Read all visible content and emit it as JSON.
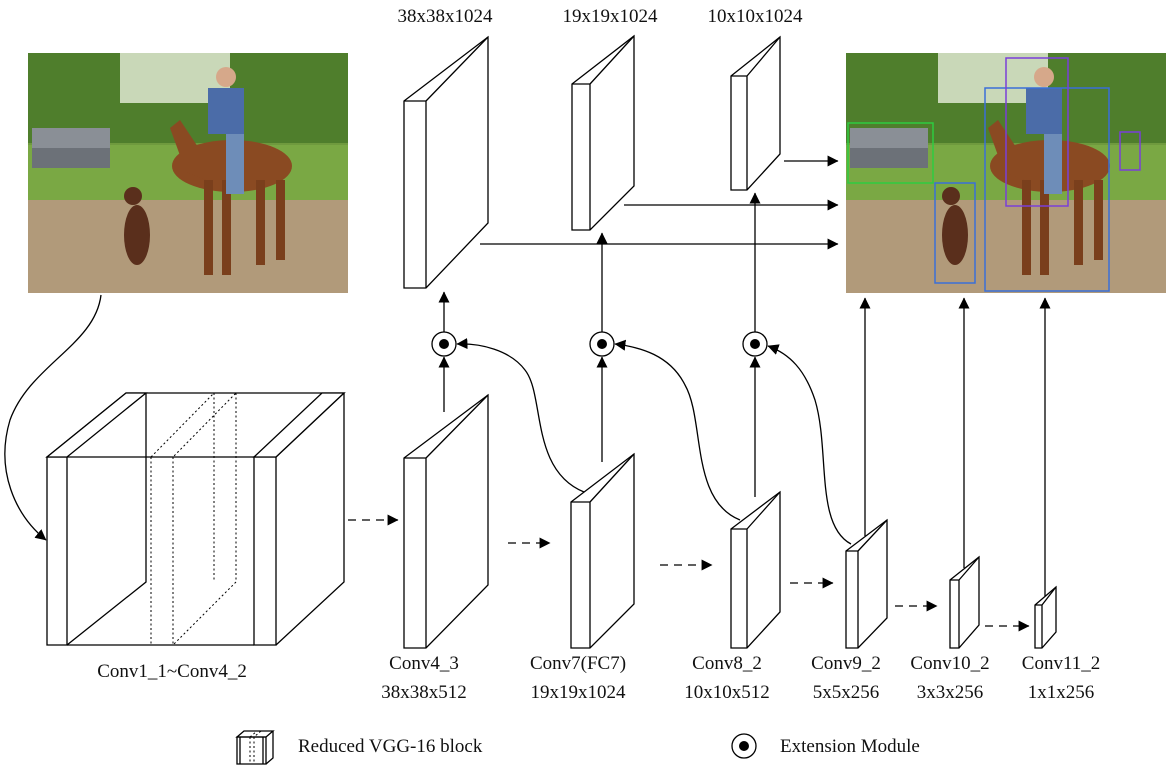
{
  "images": {
    "input_photo": {
      "label": "input image: rider on horse with dog and pickup truck"
    },
    "output_photo": {
      "label": "detection result: same scene with bounding boxes"
    }
  },
  "labels": {
    "feature_top": [
      "38x38x1024",
      "19x19x1024",
      "10x10x1024"
    ],
    "vgg_block": "Conv1_1~Conv4_2",
    "layers": [
      {
        "name": "Conv4_3",
        "dims": "38x38x512"
      },
      {
        "name": "Conv7(FC7)",
        "dims": "19x19x1024"
      },
      {
        "name": "Conv8_2",
        "dims": "10x10x512"
      },
      {
        "name": "Conv9_2",
        "dims": "5x5x256"
      },
      {
        "name": "Conv10_2",
        "dims": "3x3x256"
      },
      {
        "name": "Conv11_2",
        "dims": "1x1x256"
      }
    ]
  },
  "legend": {
    "vgg": "Reduced VGG-16 block",
    "extension": "Extension Module"
  },
  "colors": {
    "stroke": "#000000",
    "box_green": "#2ecc40",
    "box_blue": "#3a6fd8",
    "box_purple": "#7a3fd8"
  }
}
